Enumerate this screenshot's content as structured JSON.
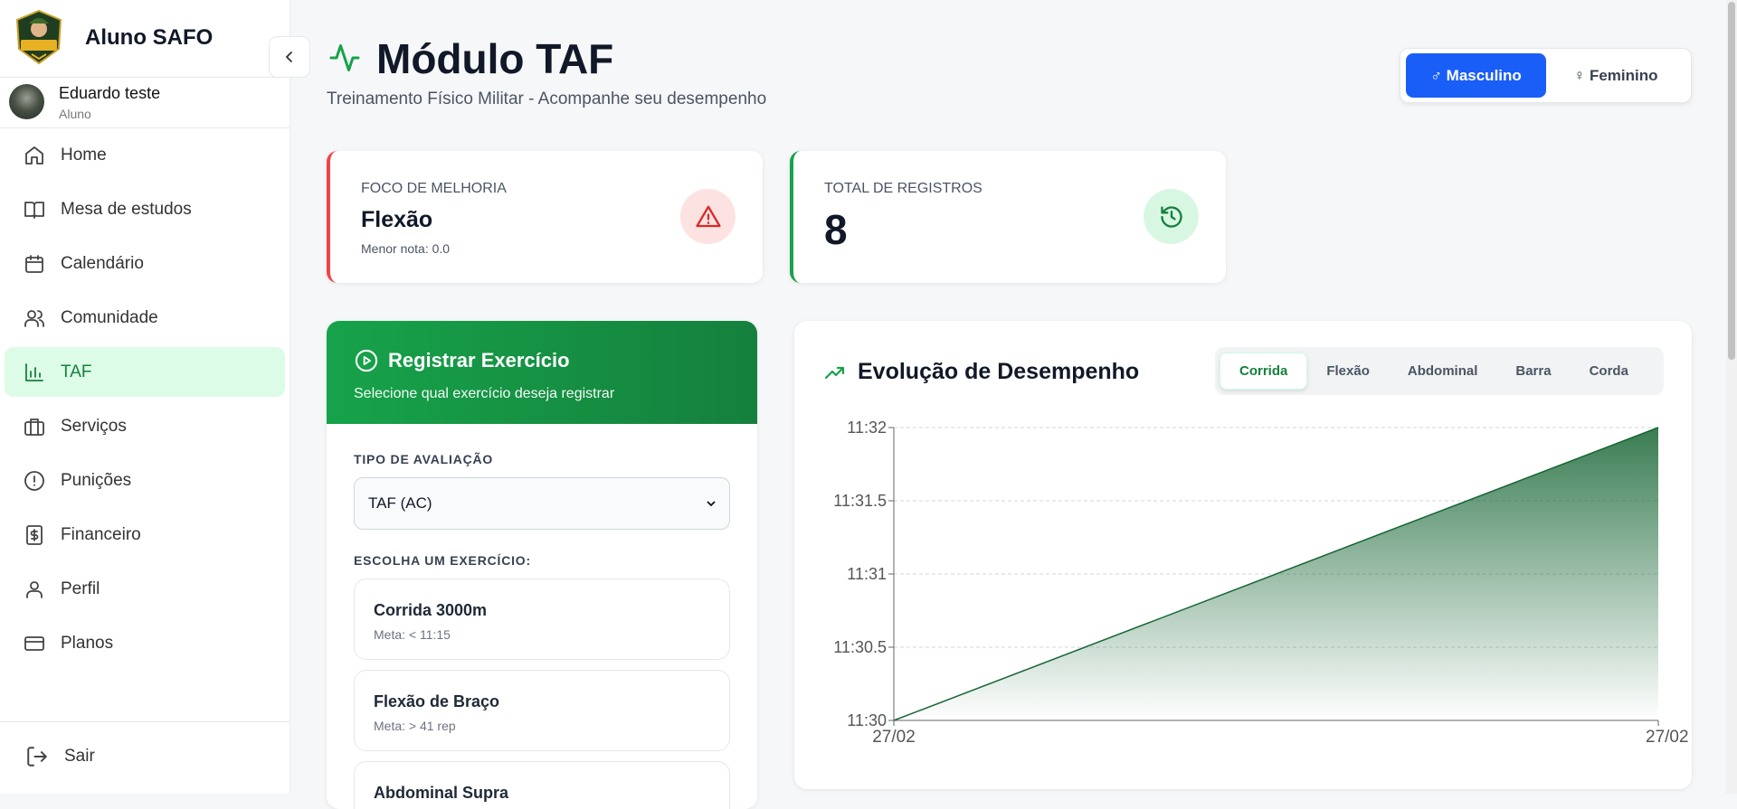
{
  "sidebar": {
    "brand": "Aluno SAFO",
    "logo_text": "ALUNO SAFO",
    "user": {
      "name": "Eduardo teste",
      "role": "Aluno"
    },
    "items": [
      {
        "label": "Home",
        "icon": "home-icon"
      },
      {
        "label": "Mesa de estudos",
        "icon": "book-icon"
      },
      {
        "label": "Calendário",
        "icon": "calendar-icon"
      },
      {
        "label": "Comunidade",
        "icon": "users-icon"
      },
      {
        "label": "TAF",
        "icon": "bar-chart-icon",
        "active": true
      },
      {
        "label": "Serviços",
        "icon": "briefcase-icon"
      },
      {
        "label": "Punições",
        "icon": "alert-circle-icon"
      },
      {
        "label": "Financeiro",
        "icon": "dollar-icon"
      },
      {
        "label": "Perfil",
        "icon": "user-icon"
      },
      {
        "label": "Planos",
        "icon": "credit-card-icon"
      }
    ],
    "logout": "Sair"
  },
  "header": {
    "title": "Módulo TAF",
    "subtitle": "Treinamento Físico Militar - Acompanhe seu desempenho",
    "gender": {
      "options": [
        "♂ Masculino",
        "♀ Feminino"
      ],
      "selected": "♂ Masculino"
    }
  },
  "stats": {
    "focus": {
      "label": "FOCO DE MELHORIA",
      "value": "Flexão",
      "note": "Menor nota: 0.0",
      "color": "#ef4444"
    },
    "total": {
      "label": "TOTAL DE REGISTROS",
      "value": "8",
      "color": "#16a34a"
    }
  },
  "register": {
    "title": "Registrar Exercício",
    "subtitle": "Selecione qual exercício deseja registrar",
    "eval_label": "TIPO DE AVALIAÇÃO",
    "eval_value": "TAF (AC)",
    "choose_label": "ESCOLHA UM EXERCÍCIO:",
    "exercises": [
      {
        "name": "Corrida 3000m",
        "meta": "Meta: < 11:15"
      },
      {
        "name": "Flexão de Braço",
        "meta": "Meta: > 41 rep"
      },
      {
        "name": "Abdominal Supra",
        "meta": ""
      }
    ]
  },
  "performance": {
    "title": "Evolução de Desempenho",
    "tabs": [
      "Corrida",
      "Flexão",
      "Abdominal",
      "Barra",
      "Corda"
    ],
    "active_tab": "Corrida"
  },
  "chart_data": {
    "type": "area",
    "x": [
      "27/02",
      "27/02"
    ],
    "values": [
      11.5,
      11.5333
    ],
    "y_display": [
      "11:30",
      "11:32"
    ],
    "yticks": [
      "11:30",
      "11:30.5",
      "11:31",
      "11:31.5",
      "11:32"
    ],
    "xticks": [
      "27/02",
      "27/02"
    ],
    "grid": true,
    "color": "#166534"
  }
}
